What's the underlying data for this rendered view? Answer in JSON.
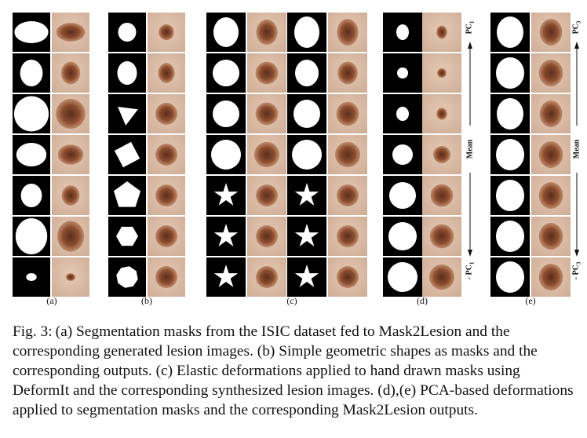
{
  "figure": {
    "panel_labels": [
      "(a)",
      "(b)",
      "(c)",
      "(d)",
      "(e)"
    ],
    "axis_d": {
      "top": "PC",
      "top_sub": "1",
      "middle": "Mean",
      "bottom": "- PC",
      "bottom_sub": "1"
    },
    "axis_e": {
      "top": "PC",
      "top_sub": "3",
      "middle": "Mean",
      "bottom": "- PC",
      "bottom_sub": "3"
    },
    "colors": {
      "mask_bg": "#000000",
      "mask_fg": "#ffffff",
      "skin": "#d8b7a0",
      "lesion": "#8a4a2a"
    }
  },
  "caption": {
    "number": "Fig. 3:",
    "text": "(a) Segmentation masks from the ISIC dataset fed to Mask2Lesion and the corresponding generated lesion images. (b) Simple geometric shapes as masks and the corresponding outputs. (c) Elastic deformations applied to hand drawn masks using DeformIt and the corresponding synthesized lesion images. (d),(e) PCA-based deformations applied to segmentation masks and the corresponding Mask2Lesion outputs."
  }
}
